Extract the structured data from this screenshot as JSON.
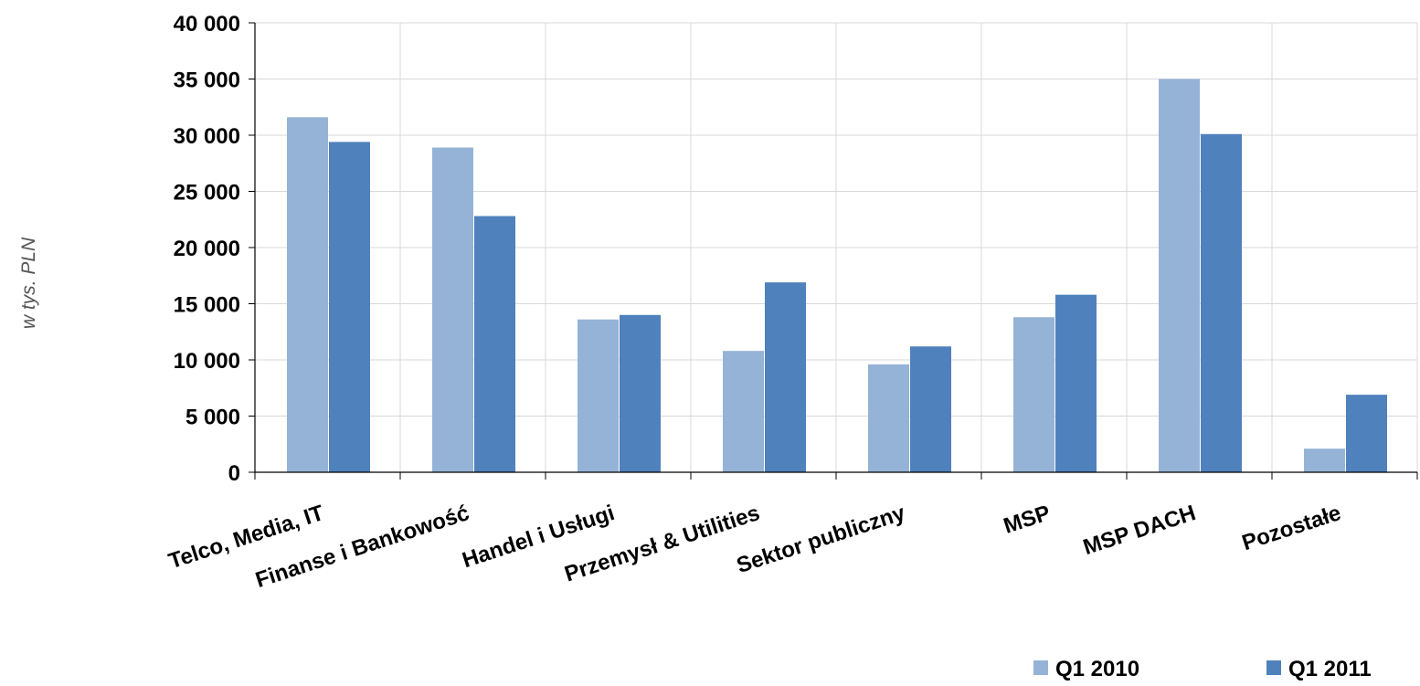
{
  "chart_data": {
    "type": "bar",
    "ylabel": "w tys. PLN",
    "xlabel": "",
    "ylim": [
      0,
      40000
    ],
    "y_ticks": [
      0,
      5000,
      10000,
      15000,
      20000,
      25000,
      30000,
      35000,
      40000
    ],
    "y_tick_labels": [
      "0",
      "5 000",
      "10 000",
      "15 000",
      "20 000",
      "25 000",
      "30 000",
      "35 000",
      "40 000"
    ],
    "grid": true,
    "legend_position": "bottom-right",
    "categories": [
      "Telco, Media, IT",
      "Finanse i Bankowość",
      "Handel i Usługi",
      "Przemysł & Utilities",
      "Sektor publiczny",
      "MSP",
      "MSP DACH",
      "Pozostałe"
    ],
    "series": [
      {
        "name": "Q1 2010",
        "color": "#95B3D7",
        "values": [
          31600,
          28900,
          13600,
          10800,
          9600,
          13800,
          35000,
          2100
        ]
      },
      {
        "name": "Q1 2011",
        "color": "#4F81BD",
        "values": [
          29400,
          22800,
          14000,
          16900,
          11200,
          15800,
          30100,
          6900
        ]
      }
    ]
  }
}
